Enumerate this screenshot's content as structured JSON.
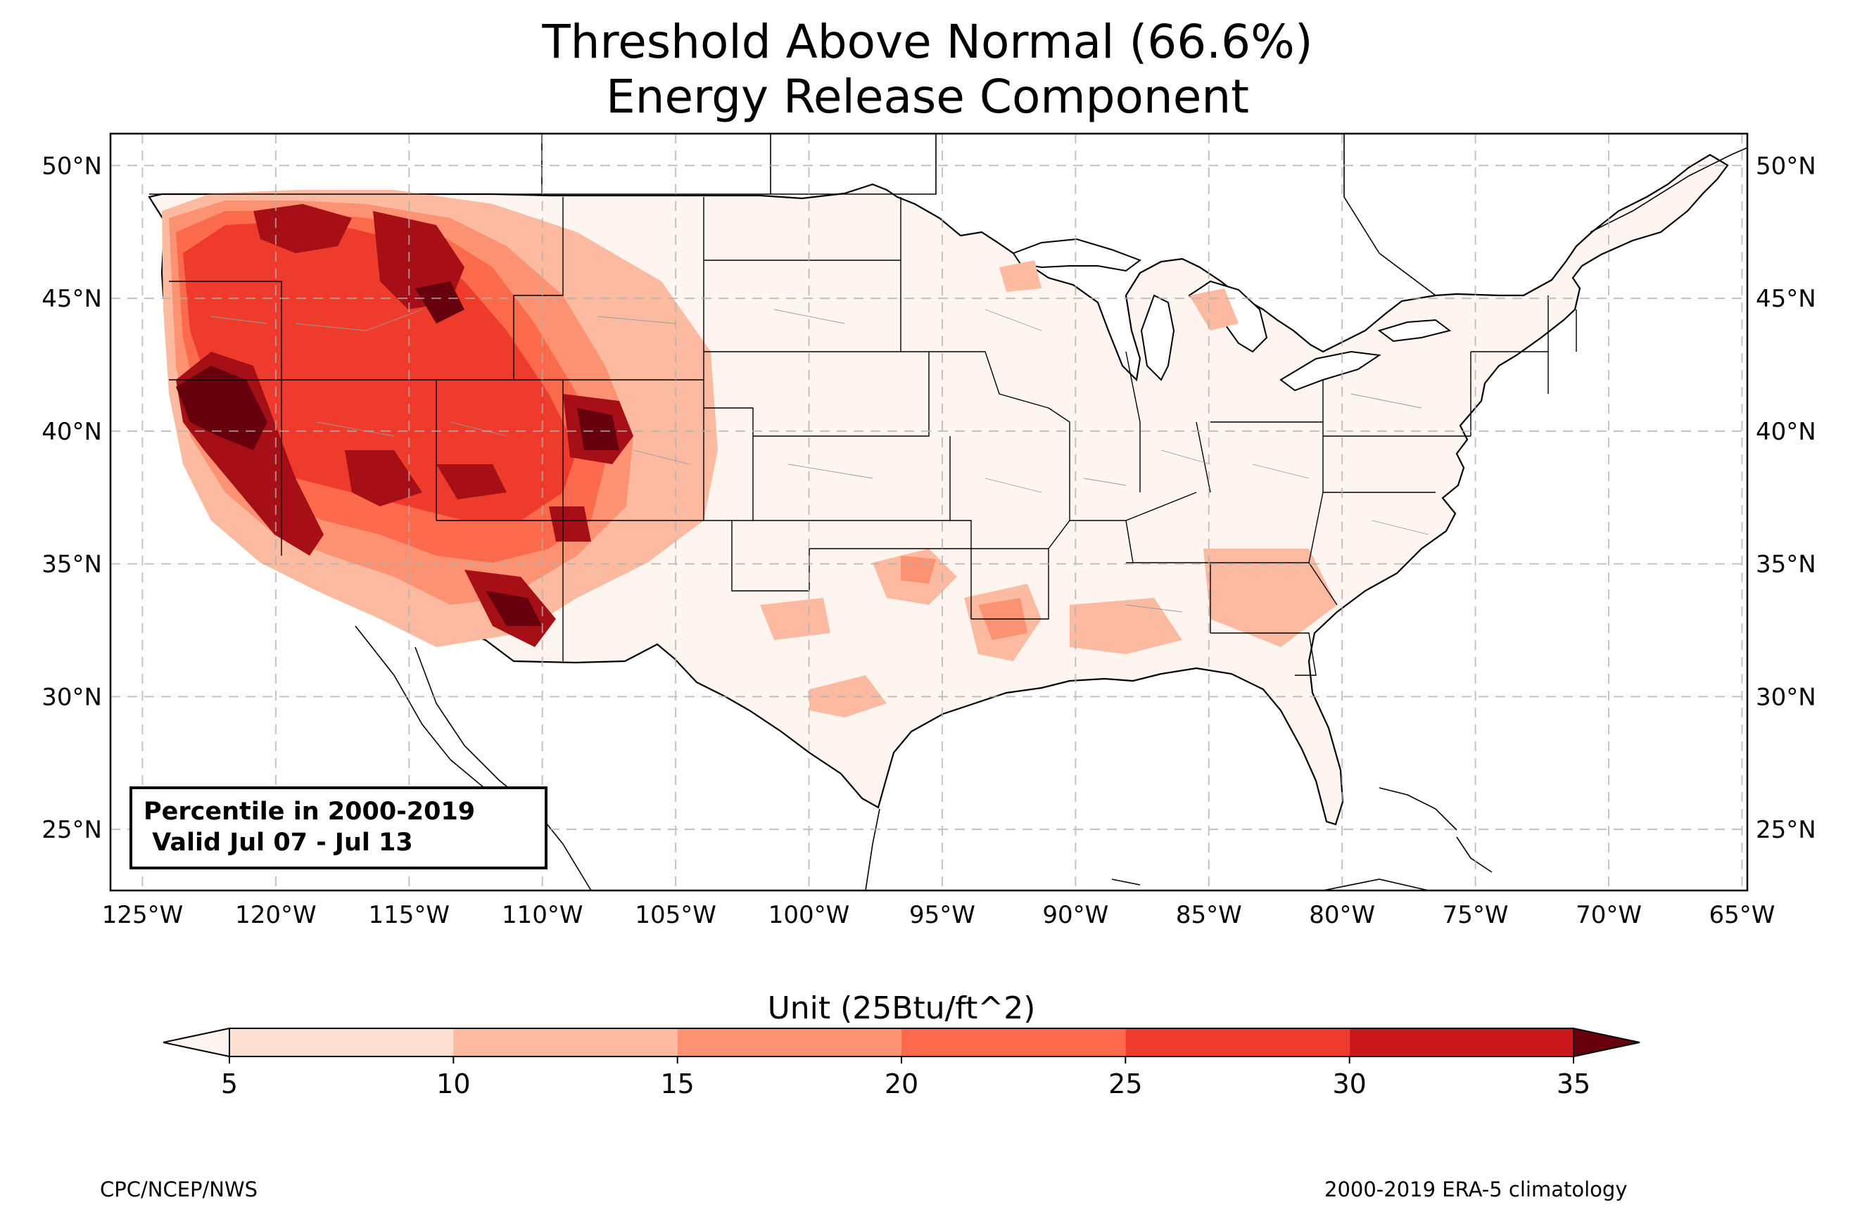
{
  "title": {
    "line1": "Threshold Above Normal (66.6%)",
    "line2": "Energy Release Component"
  },
  "axes": {
    "longitude_ticks": [
      "125°W",
      "120°W",
      "115°W",
      "110°W",
      "105°W",
      "100°W",
      "95°W",
      "90°W",
      "85°W",
      "80°W",
      "75°W",
      "70°W",
      "65°W"
    ],
    "latitude_ticks": [
      "50°N",
      "45°N",
      "40°N",
      "35°N",
      "30°N",
      "25°N"
    ],
    "lon_values": [
      -125,
      -120,
      -115,
      -110,
      -105,
      -100,
      -95,
      -90,
      -85,
      -80,
      -75,
      -70,
      -65
    ],
    "lat_values": [
      50,
      45,
      40,
      35,
      30,
      25
    ],
    "lon_range": [
      -126.2,
      -64.8
    ],
    "lat_range": [
      22.7,
      51.2
    ],
    "gridlines": true
  },
  "info_box": {
    "line1": "Percentile in 2000-2019",
    "line2": " Valid Jul 07 - Jul 13"
  },
  "colorbar": {
    "title": "Unit (25Btu/ft^2)",
    "labels": [
      "5",
      "10",
      "15",
      "20",
      "25",
      "30",
      "35"
    ],
    "values": [
      5,
      10,
      15,
      20,
      25,
      30,
      35
    ],
    "colors": [
      "#fee0d2",
      "#fcbba1",
      "#fc9272",
      "#fb6a4a",
      "#ef3b2c",
      "#cb181d",
      "#a50f15"
    ],
    "under_color": "#fff5f0",
    "over_color": "#67000d"
  },
  "footer": {
    "left": "CPC/NCEP/NWS",
    "right": "2000-2019 ERA-5 climatology"
  }
}
